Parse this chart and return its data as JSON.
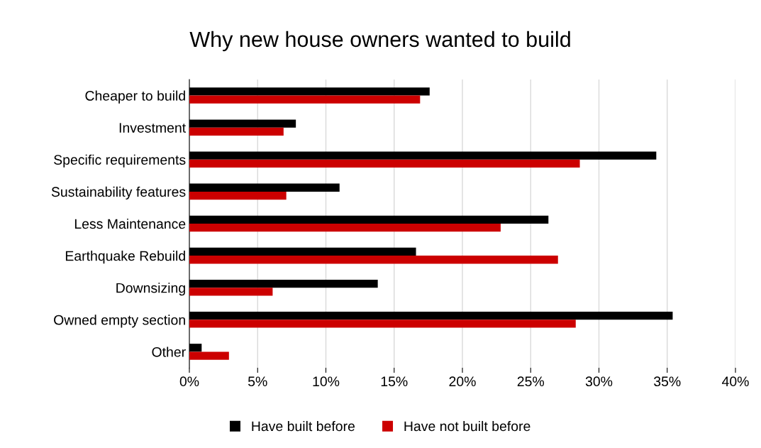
{
  "chart_data": {
    "type": "bar",
    "orientation": "horizontal",
    "title": "Why new house owners wanted to build",
    "categories": [
      "Cheaper to build",
      "Investment",
      "Specific requirements",
      "Sustainability features",
      "Less Maintenance",
      "Earthquake Rebuild",
      "Downsizing",
      "Owned empty section",
      "Other"
    ],
    "series": [
      {
        "name": "Have built before",
        "color": "#000000",
        "values": [
          17.6,
          7.8,
          34.2,
          11.0,
          26.3,
          16.6,
          13.8,
          35.4,
          0.9
        ]
      },
      {
        "name": "Have not built before",
        "color": "#cc0000",
        "values": [
          16.9,
          6.9,
          28.6,
          7.1,
          22.8,
          27.0,
          6.1,
          28.3,
          2.9
        ]
      }
    ],
    "xlim": [
      0,
      40
    ],
    "xticks": [
      {
        "value": 0,
        "label": "0%"
      },
      {
        "value": 5,
        "label": "5%"
      },
      {
        "value": 10,
        "label": "10%"
      },
      {
        "value": 15,
        "label": "15%"
      },
      {
        "value": 20,
        "label": "20%"
      },
      {
        "value": 25,
        "label": "25%"
      },
      {
        "value": 30,
        "label": "30%"
      },
      {
        "value": 35,
        "label": "35%"
      },
      {
        "value": 40,
        "label": "40%"
      }
    ],
    "grid": "x",
    "legend": "bottom"
  }
}
